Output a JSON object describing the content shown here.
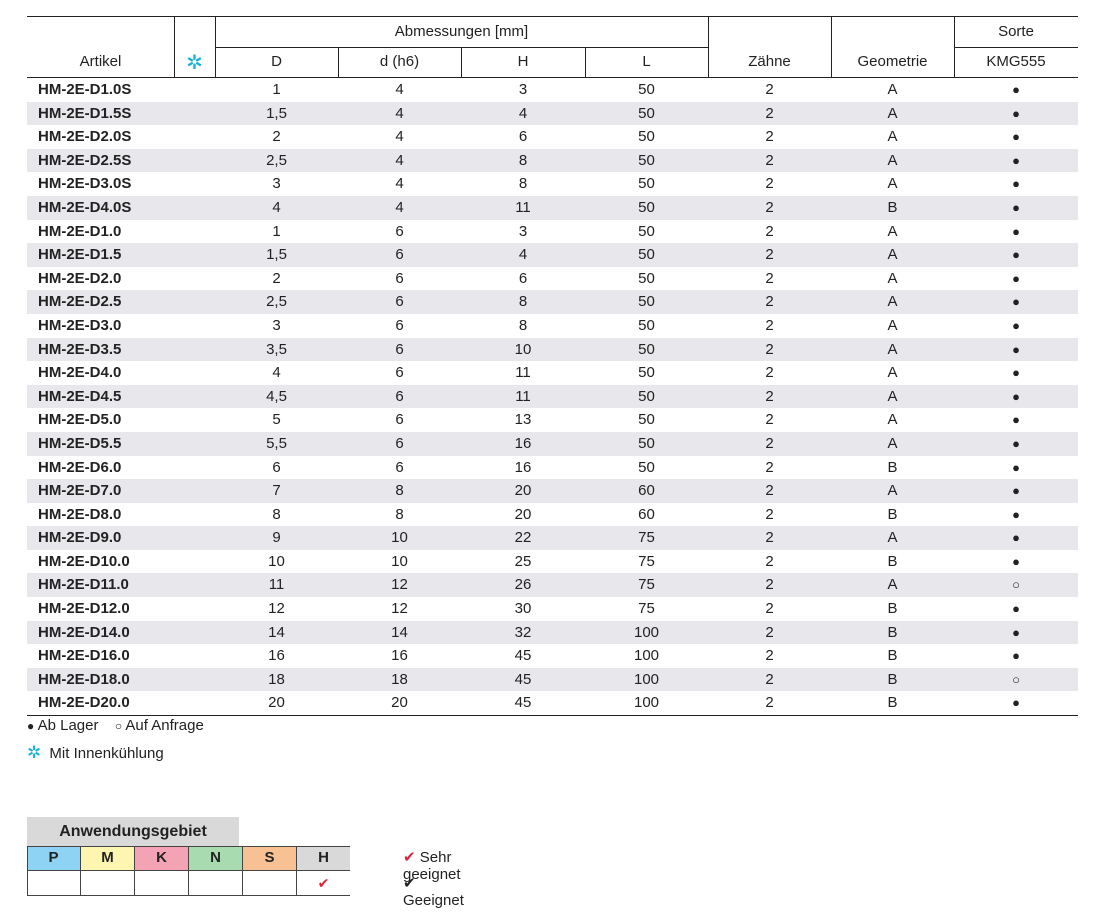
{
  "table": {
    "headers": {
      "artikel": "Artikel",
      "abmessungen": "Abmessungen [mm]",
      "D": "D",
      "d": "d (h6)",
      "H": "H",
      "L": "L",
      "zaehne": "Zähne",
      "geometrie": "Geometrie",
      "sorte": "Sorte",
      "kmg": "KMG555"
    },
    "coolant_symbol": "✲",
    "rows": [
      {
        "art": "HM-2E-D1.0S",
        "D": "1",
        "d": "4",
        "H": "3",
        "L": "50",
        "z": "2",
        "geo": "A",
        "st": "●"
      },
      {
        "art": "HM-2E-D1.5S",
        "D": "1,5",
        "d": "4",
        "H": "4",
        "L": "50",
        "z": "2",
        "geo": "A",
        "st": "●"
      },
      {
        "art": "HM-2E-D2.0S",
        "D": "2",
        "d": "4",
        "H": "6",
        "L": "50",
        "z": "2",
        "geo": "A",
        "st": "●"
      },
      {
        "art": "HM-2E-D2.5S",
        "D": "2,5",
        "d": "4",
        "H": "8",
        "L": "50",
        "z": "2",
        "geo": "A",
        "st": "●"
      },
      {
        "art": "HM-2E-D3.0S",
        "D": "3",
        "d": "4",
        "H": "8",
        "L": "50",
        "z": "2",
        "geo": "A",
        "st": "●"
      },
      {
        "art": "HM-2E-D4.0S",
        "D": "4",
        "d": "4",
        "H": "11",
        "L": "50",
        "z": "2",
        "geo": "B",
        "st": "●"
      },
      {
        "art": "HM-2E-D1.0",
        "D": "1",
        "d": "6",
        "H": "3",
        "L": "50",
        "z": "2",
        "geo": "A",
        "st": "●"
      },
      {
        "art": "HM-2E-D1.5",
        "D": "1,5",
        "d": "6",
        "H": "4",
        "L": "50",
        "z": "2",
        "geo": "A",
        "st": "●"
      },
      {
        "art": "HM-2E-D2.0",
        "D": "2",
        "d": "6",
        "H": "6",
        "L": "50",
        "z": "2",
        "geo": "A",
        "st": "●"
      },
      {
        "art": "HM-2E-D2.5",
        "D": "2,5",
        "d": "6",
        "H": "8",
        "L": "50",
        "z": "2",
        "geo": "A",
        "st": "●"
      },
      {
        "art": "HM-2E-D3.0",
        "D": "3",
        "d": "6",
        "H": "8",
        "L": "50",
        "z": "2",
        "geo": "A",
        "st": "●"
      },
      {
        "art": "HM-2E-D3.5",
        "D": "3,5",
        "d": "6",
        "H": "10",
        "L": "50",
        "z": "2",
        "geo": "A",
        "st": "●"
      },
      {
        "art": "HM-2E-D4.0",
        "D": "4",
        "d": "6",
        "H": "11",
        "L": "50",
        "z": "2",
        "geo": "A",
        "st": "●"
      },
      {
        "art": "HM-2E-D4.5",
        "D": "4,5",
        "d": "6",
        "H": "11",
        "L": "50",
        "z": "2",
        "geo": "A",
        "st": "●"
      },
      {
        "art": "HM-2E-D5.0",
        "D": "5",
        "d": "6",
        "H": "13",
        "L": "50",
        "z": "2",
        "geo": "A",
        "st": "●"
      },
      {
        "art": "HM-2E-D5.5",
        "D": "5,5",
        "d": "6",
        "H": "16",
        "L": "50",
        "z": "2",
        "geo": "A",
        "st": "●"
      },
      {
        "art": "HM-2E-D6.0",
        "D": "6",
        "d": "6",
        "H": "16",
        "L": "50",
        "z": "2",
        "geo": "B",
        "st": "●"
      },
      {
        "art": "HM-2E-D7.0",
        "D": "7",
        "d": "8",
        "H": "20",
        "L": "60",
        "z": "2",
        "geo": "A",
        "st": "●"
      },
      {
        "art": "HM-2E-D8.0",
        "D": "8",
        "d": "8",
        "H": "20",
        "L": "60",
        "z": "2",
        "geo": "B",
        "st": "●"
      },
      {
        "art": "HM-2E-D9.0",
        "D": "9",
        "d": "10",
        "H": "22",
        "L": "75",
        "z": "2",
        "geo": "A",
        "st": "●"
      },
      {
        "art": "HM-2E-D10.0",
        "D": "10",
        "d": "10",
        "H": "25",
        "L": "75",
        "z": "2",
        "geo": "B",
        "st": "●"
      },
      {
        "art": "HM-2E-D11.0",
        "D": "11",
        "d": "12",
        "H": "26",
        "L": "75",
        "z": "2",
        "geo": "A",
        "st": "○"
      },
      {
        "art": "HM-2E-D12.0",
        "D": "12",
        "d": "12",
        "H": "30",
        "L": "75",
        "z": "2",
        "geo": "B",
        "st": "●"
      },
      {
        "art": "HM-2E-D14.0",
        "D": "14",
        "d": "14",
        "H": "32",
        "L": "100",
        "z": "2",
        "geo": "B",
        "st": "●"
      },
      {
        "art": "HM-2E-D16.0",
        "D": "16",
        "d": "16",
        "H": "45",
        "L": "100",
        "z": "2",
        "geo": "B",
        "st": "●"
      },
      {
        "art": "HM-2E-D18.0",
        "D": "18",
        "d": "18",
        "H": "45",
        "L": "100",
        "z": "2",
        "geo": "B",
        "st": "○"
      },
      {
        "art": "HM-2E-D20.0",
        "D": "20",
        "d": "20",
        "H": "45",
        "L": "100",
        "z": "2",
        "geo": "B",
        "st": "●"
      }
    ]
  },
  "legend": {
    "filled_symbol": "●",
    "ab_lager": "Ab Lager",
    "open_symbol": "○",
    "auf_anfrage": "Auf Anfrage",
    "coolant_symbol": "✲",
    "innenkuehlung": "Mit Innenkühlung"
  },
  "application": {
    "title": "Anwendungsgebiet",
    "materials": [
      {
        "label": "P",
        "color": "#8fd3f4",
        "mark": ""
      },
      {
        "label": "M",
        "color": "#fdf6b0",
        "mark": ""
      },
      {
        "label": "K",
        "color": "#f4a3b4",
        "mark": ""
      },
      {
        "label": "N",
        "color": "#a8dcb0",
        "mark": ""
      },
      {
        "label": "S",
        "color": "#f7c193",
        "mark": ""
      },
      {
        "label": "H",
        "color": "#d9d9d9",
        "mark": "✔"
      }
    ],
    "key": {
      "very_good_symbol": "✔",
      "very_good": "Sehr geeignet",
      "good_symbol": "✔",
      "good": "Geeignet"
    }
  }
}
